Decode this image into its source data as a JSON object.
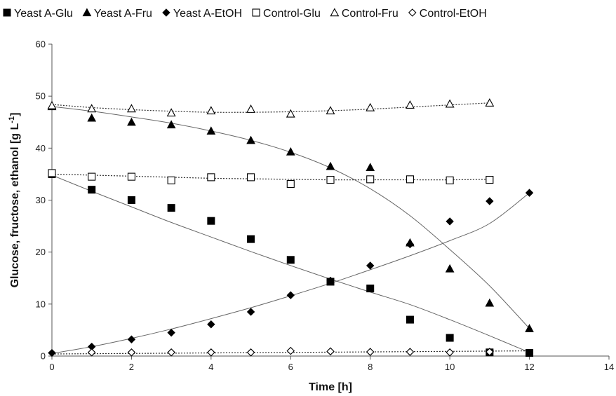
{
  "chart_data": {
    "type": "scatter",
    "xlabel": "Time [h]",
    "ylabel": "Glucose, fructose, ethanol [g L-1]",
    "ylabel_parts": {
      "main": "Glucose, fructose, ethanol [g L",
      "sup": "-1",
      "end": "]"
    },
    "xlim": [
      0,
      14
    ],
    "ylim": [
      0,
      60
    ],
    "x_ticks": [
      "0",
      "2",
      "4",
      "6",
      "8",
      "10",
      "12",
      "14"
    ],
    "y_ticks": [
      "0",
      "10",
      "20",
      "30",
      "40",
      "50",
      "60"
    ],
    "grid": false,
    "legend_position": "top",
    "series": [
      {
        "name": "Yeast A-Glu",
        "marker": "square-filled",
        "x": [
          0,
          1,
          2,
          3,
          4,
          5,
          6,
          7,
          8,
          9,
          10,
          11,
          12
        ],
        "values": [
          35,
          32,
          30,
          28.5,
          26,
          22.5,
          18.5,
          14.3,
          13,
          7,
          3.5,
          0.7,
          0.6
        ],
        "trend": {
          "style": "solid",
          "x": [
            0,
            1,
            2,
            3,
            4,
            5,
            6,
            7,
            8,
            9,
            10,
            11,
            12
          ],
          "y": [
            34.8,
            31.7,
            28.7,
            25.7,
            22.9,
            20.1,
            17.4,
            14.8,
            12.3,
            9.9,
            7.0,
            3.9,
            0.7
          ]
        }
      },
      {
        "name": "Yeast A-Fru",
        "marker": "triangle-filled",
        "x": [
          0,
          1,
          2,
          3,
          4,
          5,
          6,
          7,
          8,
          9,
          10,
          11,
          12
        ],
        "values": [
          48,
          45.8,
          45,
          44.5,
          43.3,
          41.5,
          39.3,
          36.5,
          36.3,
          21.8,
          16.8,
          10.2,
          5.3
        ],
        "trend": {
          "style": "solid",
          "x": [
            0,
            1,
            2,
            3,
            4,
            5,
            6,
            7,
            8,
            9,
            10,
            11,
            12
          ],
          "y": [
            48,
            47.1,
            46.0,
            44.8,
            43.3,
            41.5,
            39.2,
            36.2,
            32.2,
            27.0,
            20.5,
            13.5,
            5.3
          ]
        }
      },
      {
        "name": "Yeast A-EtOH",
        "marker": "diamond-filled",
        "x": [
          0,
          1,
          2,
          3,
          4,
          5,
          6,
          7,
          8,
          9,
          10,
          11,
          12
        ],
        "values": [
          0.6,
          1.8,
          3.2,
          4.5,
          6.1,
          8.5,
          11.7,
          14.5,
          17.4,
          21.5,
          25.9,
          29.8,
          31.4
        ],
        "trend": {
          "style": "solid",
          "x": [
            0,
            1,
            2,
            3,
            4,
            5,
            6,
            7,
            8,
            9,
            10,
            11,
            12
          ],
          "y": [
            0.5,
            1.8,
            3.4,
            5.2,
            7.2,
            9.3,
            11.6,
            14.0,
            16.6,
            19.3,
            22.2,
            25.5,
            31.4
          ]
        }
      },
      {
        "name": "Control-Glu",
        "marker": "square-open",
        "x": [
          0,
          1,
          2,
          3,
          4,
          5,
          6,
          7,
          8,
          9,
          10,
          11
        ],
        "values": [
          35.2,
          34.5,
          34.5,
          33.8,
          34.4,
          34.4,
          33.1,
          33.9,
          34.0,
          34.0,
          33.8,
          33.9
        ],
        "trend": {
          "style": "dotted",
          "x": [
            0,
            1,
            2,
            3,
            4,
            5,
            6,
            7,
            8,
            9,
            10,
            11
          ],
          "y": [
            35.0,
            34.8,
            34.6,
            34.4,
            34.2,
            34.1,
            34.0,
            33.9,
            33.9,
            33.9,
            33.9,
            34.0
          ]
        }
      },
      {
        "name": "Control-Fru",
        "marker": "triangle-open",
        "x": [
          0,
          1,
          2,
          3,
          4,
          5,
          6,
          7,
          8,
          9,
          10,
          11
        ],
        "values": [
          48.2,
          47.6,
          47.6,
          46.8,
          47.2,
          47.5,
          46.6,
          47.2,
          47.8,
          48.3,
          48.5,
          48.7
        ],
        "trend": {
          "style": "dotted",
          "x": [
            0,
            1,
            2,
            3,
            4,
            5,
            6,
            7,
            8,
            9,
            10,
            11
          ],
          "y": [
            48.4,
            47.8,
            47.4,
            47.1,
            46.9,
            46.9,
            47.0,
            47.2,
            47.5,
            47.9,
            48.3,
            48.7
          ]
        }
      },
      {
        "name": "Control-EtOH",
        "marker": "diamond-open",
        "x": [
          1,
          2,
          3,
          4,
          5,
          6,
          7,
          8,
          9,
          10,
          11
        ],
        "values": [
          0.7,
          0.7,
          0.7,
          0.7,
          0.7,
          1.0,
          0.9,
          0.8,
          0.8,
          0.7,
          0.8
        ],
        "trend": {
          "style": "dotted",
          "x": [
            0,
            2,
            4,
            6,
            8,
            10,
            12
          ],
          "y": [
            0.4,
            0.5,
            0.6,
            0.7,
            0.8,
            0.9,
            1.0
          ]
        }
      }
    ]
  }
}
